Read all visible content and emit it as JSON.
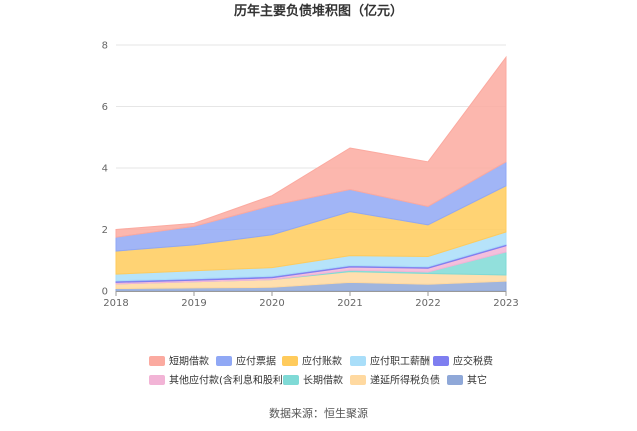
{
  "chart_data": {
    "type": "area",
    "stacked": true,
    "title": "历年主要负债堆积图（亿元）",
    "xlabel": "",
    "ylabel": "",
    "x": [
      "2018",
      "2019",
      "2020",
      "2021",
      "2022",
      "2023"
    ],
    "ylim": [
      0,
      8
    ],
    "yticks": [
      "0",
      "2",
      "4",
      "6",
      "8"
    ],
    "grid": true,
    "legend_position": "bottom",
    "series": [
      {
        "name": "其它",
        "color": "#8fa8d8",
        "values": [
          0.08,
          0.1,
          0.12,
          0.28,
          0.22,
          0.32
        ]
      },
      {
        "name": "递延所得税负债",
        "color": "#ffd9a0",
        "values": [
          0.15,
          0.2,
          0.25,
          0.35,
          0.35,
          0.2
        ]
      },
      {
        "name": "长期借款",
        "color": "#7fdad6",
        "values": [
          0.0,
          0.0,
          0.0,
          0.05,
          0.05,
          0.75
        ]
      },
      {
        "name": "其他应付款(含利息和股利)",
        "color": "#f2b4d6",
        "values": [
          0.05,
          0.05,
          0.06,
          0.1,
          0.12,
          0.2
        ]
      },
      {
        "name": "应交税费",
        "color": "#7e7ef0",
        "values": [
          0.05,
          0.05,
          0.05,
          0.05,
          0.05,
          0.05
        ]
      },
      {
        "name": "应付职工薪酬",
        "color": "#a9def9",
        "values": [
          0.22,
          0.26,
          0.28,
          0.32,
          0.33,
          0.4
        ]
      },
      {
        "name": "应付账款",
        "color": "#ffcb5c",
        "values": [
          0.75,
          0.84,
          1.07,
          1.43,
          1.03,
          1.5
        ]
      },
      {
        "name": "应付票据",
        "color": "#90a8f5",
        "values": [
          0.45,
          0.6,
          0.95,
          0.72,
          0.6,
          0.78
        ]
      },
      {
        "name": "短期借款",
        "color": "#fbaaa0",
        "values": [
          0.25,
          0.1,
          0.32,
          1.35,
          1.45,
          3.4
        ]
      }
    ],
    "legend_order": [
      "短期借款",
      "应付票据",
      "应付账款",
      "应付职工薪酬",
      "应交税费",
      "其他应付款(含利息和股利)",
      "长期借款",
      "递延所得税负债",
      "其它"
    ]
  },
  "source": "数据来源：恒生聚源"
}
